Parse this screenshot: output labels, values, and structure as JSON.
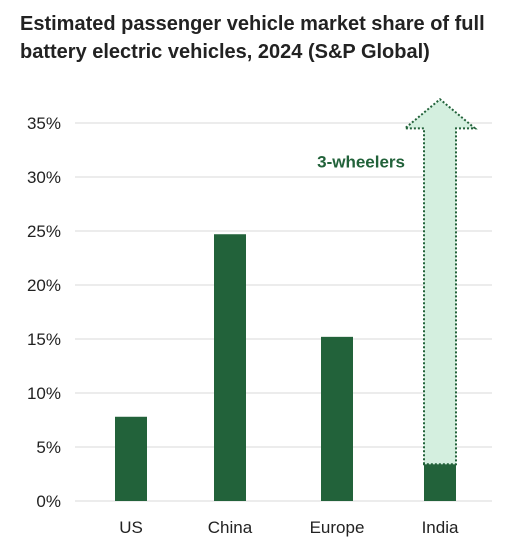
{
  "chart_data": {
    "type": "bar",
    "title": "Estimated passenger vehicle market share of full battery electric vehicles, 2024 (S&P Global)",
    "categories": [
      "US",
      "China",
      "Europe",
      "India"
    ],
    "values": [
      7.8,
      24.7,
      15.2,
      3.4
    ],
    "ylim": [
      0,
      35
    ],
    "yticks": [
      "0%",
      "5%",
      "10%",
      "15%",
      "20%",
      "25%",
      "30%",
      "35%"
    ],
    "ytick_values": [
      0,
      5,
      10,
      15,
      20,
      25,
      30,
      35
    ],
    "grid": true,
    "annotation": {
      "label": "3-wheelers",
      "category": "India",
      "from": 3.4,
      "to": 37.2
    },
    "colors": {
      "bar": "#22623a",
      "arrow_fill": "#d4efdf",
      "arrow_stroke": "#22623a",
      "grid": "#d9d9d9",
      "text": "#222222"
    }
  }
}
